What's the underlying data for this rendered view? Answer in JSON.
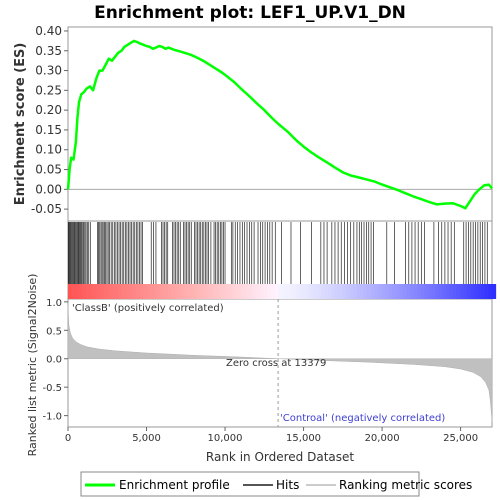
{
  "chart_data": {
    "type": "line",
    "title": "Enrichment plot: LEF1_UP.V1_DN",
    "top_panel": {
      "ylabel": "Enrichment score (ES)",
      "ylim": [
        -0.08,
        0.41
      ],
      "y_ticks": [
        -0.05,
        0.0,
        0.05,
        0.1,
        0.15,
        0.2,
        0.25,
        0.3,
        0.35,
        0.4
      ],
      "y_tick_labels": [
        "-0.05",
        "0.00",
        "0.05",
        "0.10",
        "0.15",
        "0.20",
        "0.25",
        "0.30",
        "0.35",
        "0.40"
      ],
      "series": [
        {
          "name": "Enrichment profile",
          "color": "#00ff00",
          "x": [
            0,
            100,
            200,
            350,
            500,
            600,
            700,
            850,
            1000,
            1200,
            1400,
            1600,
            1800,
            2000,
            2200,
            2400,
            2600,
            2800,
            3000,
            3200,
            3400,
            3600,
            3800,
            4000,
            4200,
            4400,
            4600,
            4800,
            5000,
            5200,
            5400,
            5600,
            5800,
            6000,
            6200,
            6400,
            6600,
            6800,
            7000,
            7400,
            7800,
            8200,
            8600,
            9000,
            9400,
            9800,
            10200,
            10600,
            11000,
            11500,
            12000,
            12500,
            13000,
            13400,
            14000,
            14500,
            15000,
            15500,
            16000,
            16500,
            17000,
            17500,
            18000,
            18500,
            19000,
            19500,
            20000,
            20500,
            21000,
            21500,
            22000,
            22500,
            23000,
            23500,
            24000,
            24500,
            25000,
            25300,
            25600,
            25900,
            26200,
            26500,
            26800,
            27000
          ],
          "y": [
            0.0,
            0.05,
            0.08,
            0.075,
            0.12,
            0.18,
            0.22,
            0.24,
            0.245,
            0.255,
            0.26,
            0.25,
            0.28,
            0.3,
            0.3,
            0.315,
            0.33,
            0.325,
            0.335,
            0.345,
            0.35,
            0.36,
            0.365,
            0.37,
            0.375,
            0.372,
            0.368,
            0.365,
            0.362,
            0.36,
            0.355,
            0.358,
            0.362,
            0.36,
            0.355,
            0.358,
            0.355,
            0.352,
            0.35,
            0.345,
            0.34,
            0.333,
            0.325,
            0.315,
            0.305,
            0.295,
            0.283,
            0.27,
            0.255,
            0.237,
            0.218,
            0.2,
            0.18,
            0.165,
            0.145,
            0.125,
            0.108,
            0.093,
            0.08,
            0.068,
            0.055,
            0.043,
            0.035,
            0.03,
            0.025,
            0.02,
            0.012,
            0.005,
            -0.002,
            -0.01,
            -0.018,
            -0.025,
            -0.032,
            -0.038,
            -0.036,
            -0.035,
            -0.042,
            -0.048,
            -0.03,
            -0.012,
            0.0,
            0.01,
            0.012,
            0.002
          ]
        }
      ]
    },
    "hits_panel": {
      "label": "Hits",
      "hit_positions": [
        20,
        60,
        110,
        150,
        200,
        260,
        320,
        380,
        430,
        480,
        540,
        600,
        650,
        700,
        760,
        820,
        880,
        950,
        1010,
        1080,
        1150,
        1230,
        1320,
        1420,
        1880,
        1950,
        2020,
        2100,
        2170,
        2240,
        2320,
        2400,
        2480,
        2560,
        2650,
        2750,
        2850,
        2950,
        3050,
        3150,
        3250,
        3350,
        3450,
        3550,
        3650,
        3750,
        3850,
        3950,
        4050,
        4150,
        4250,
        4350,
        4450,
        4550,
        4650,
        4750,
        5300,
        5450,
        5600,
        5950,
        6050,
        6150,
        6250,
        6350,
        6650,
        6750,
        6850,
        6950,
        7050,
        7150,
        7350,
        7450,
        7550,
        7650,
        7750,
        7850,
        8050,
        8150,
        8250,
        8350,
        8450,
        8550,
        8650,
        8750,
        8850,
        8950,
        9100,
        9300,
        9400,
        9500,
        9600,
        9700,
        9800,
        9900,
        10000,
        10400,
        10500,
        10650,
        10800,
        10950,
        11100,
        11250,
        11400,
        11550,
        11700,
        11850,
        12100,
        12250,
        12400,
        12550,
        12700,
        12850,
        13000,
        13200,
        13600,
        14200,
        14800,
        15500,
        16100,
        16300,
        16500,
        16800,
        17000,
        17200,
        17400,
        17600,
        17800,
        18000,
        18200,
        18400,
        18550,
        18700,
        18850,
        19000,
        19150,
        19300,
        19450,
        20300,
        20800,
        21500,
        21700,
        21900,
        22100,
        22300,
        22500,
        22700,
        23300,
        23600,
        23800,
        24000,
        24200,
        24400,
        24600,
        25200,
        25350,
        25500,
        25650,
        25800,
        25950,
        26100,
        26250,
        26400,
        26550,
        26700
      ]
    },
    "bottom_panel": {
      "ylabel": "Ranked list metric (Signal2Noise)",
      "xlabel": "Rank in Ordered Dataset",
      "ylim": [
        -1.2,
        1.05
      ],
      "y_ticks": [
        1.0,
        0.5,
        0.0,
        -0.5,
        -1.0
      ],
      "y_tick_labels": [
        "1.0",
        "0.5",
        "0.0",
        "-0.5",
        "-1.0"
      ],
      "x_ticks": [
        0,
        5000,
        10000,
        15000,
        20000,
        25000
      ],
      "x_tick_labels": [
        "0",
        "5,000",
        "10,000",
        "15,000",
        "20,000",
        "25,000"
      ],
      "xlim": [
        0,
        27000
      ],
      "zero_cross": 13379,
      "zero_cross_label": "Zero cross at 13379",
      "positive_label": "'ClassB' (positively correlated)",
      "negative_label": "'Controal' (negatively correlated)",
      "positive_color": "#d43f3f",
      "negative_color": "#3f3fd4",
      "metric_x": [
        0,
        50,
        150,
        300,
        500,
        800,
        1200,
        2000,
        3000,
        5000,
        8000,
        11000,
        13379,
        16000,
        19000,
        22000,
        24000,
        25000,
        25800,
        26300,
        26600,
        26800,
        26900,
        27000
      ],
      "metric_y": [
        0.95,
        0.6,
        0.45,
        0.36,
        0.3,
        0.25,
        0.21,
        0.17,
        0.14,
        0.1,
        0.06,
        0.03,
        0.0,
        -0.03,
        -0.06,
        -0.1,
        -0.14,
        -0.18,
        -0.24,
        -0.32,
        -0.42,
        -0.55,
        -0.75,
        -1.1
      ]
    },
    "legend": {
      "items": [
        {
          "label": "Enrichment profile",
          "color": "#00ff00"
        },
        {
          "label": "Hits",
          "color": "#555555"
        },
        {
          "label": "Ranking metric scores",
          "color": "#cccccc"
        }
      ]
    }
  }
}
